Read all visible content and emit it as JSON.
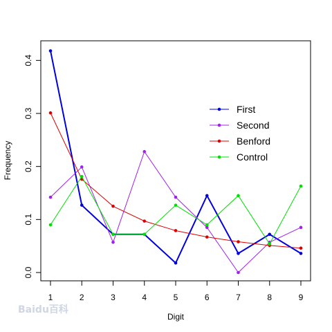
{
  "chart_data": {
    "type": "line",
    "title": "",
    "xlabel": "Digit",
    "ylabel": "Frequency",
    "x": [
      1,
      2,
      3,
      4,
      5,
      6,
      7,
      8,
      9
    ],
    "xlim": [
      1,
      9
    ],
    "ylim": [
      0,
      0.42
    ],
    "y_ticks": [
      "0.0",
      "0.1",
      "0.2",
      "0.3",
      "0.4"
    ],
    "y_tick_values": [
      0,
      0.1,
      0.2,
      0.3,
      0.4
    ],
    "grid": false,
    "legend_position": "right",
    "series": [
      {
        "name": "First",
        "color": "#0000dd",
        "values": [
          0.418,
          0.127,
          0.072,
          0.072,
          0.018,
          0.145,
          0.036,
          0.072,
          0.036
        ]
      },
      {
        "name": "Second",
        "color": "#a020f0",
        "values": [
          0.142,
          0.199,
          0.057,
          0.228,
          0.142,
          0.085,
          0.0,
          0.057,
          0.085
        ]
      },
      {
        "name": "Benford",
        "color": "#dd0000",
        "values": [
          0.301,
          0.176,
          0.125,
          0.097,
          0.079,
          0.067,
          0.058,
          0.051,
          0.046
        ]
      },
      {
        "name": "Control",
        "color": "#00e000",
        "values": [
          0.09,
          0.181,
          0.072,
          0.072,
          0.127,
          0.09,
          0.145,
          0.054,
          0.163
        ]
      }
    ]
  },
  "watermark": {
    "text": "Baidu百科"
  }
}
